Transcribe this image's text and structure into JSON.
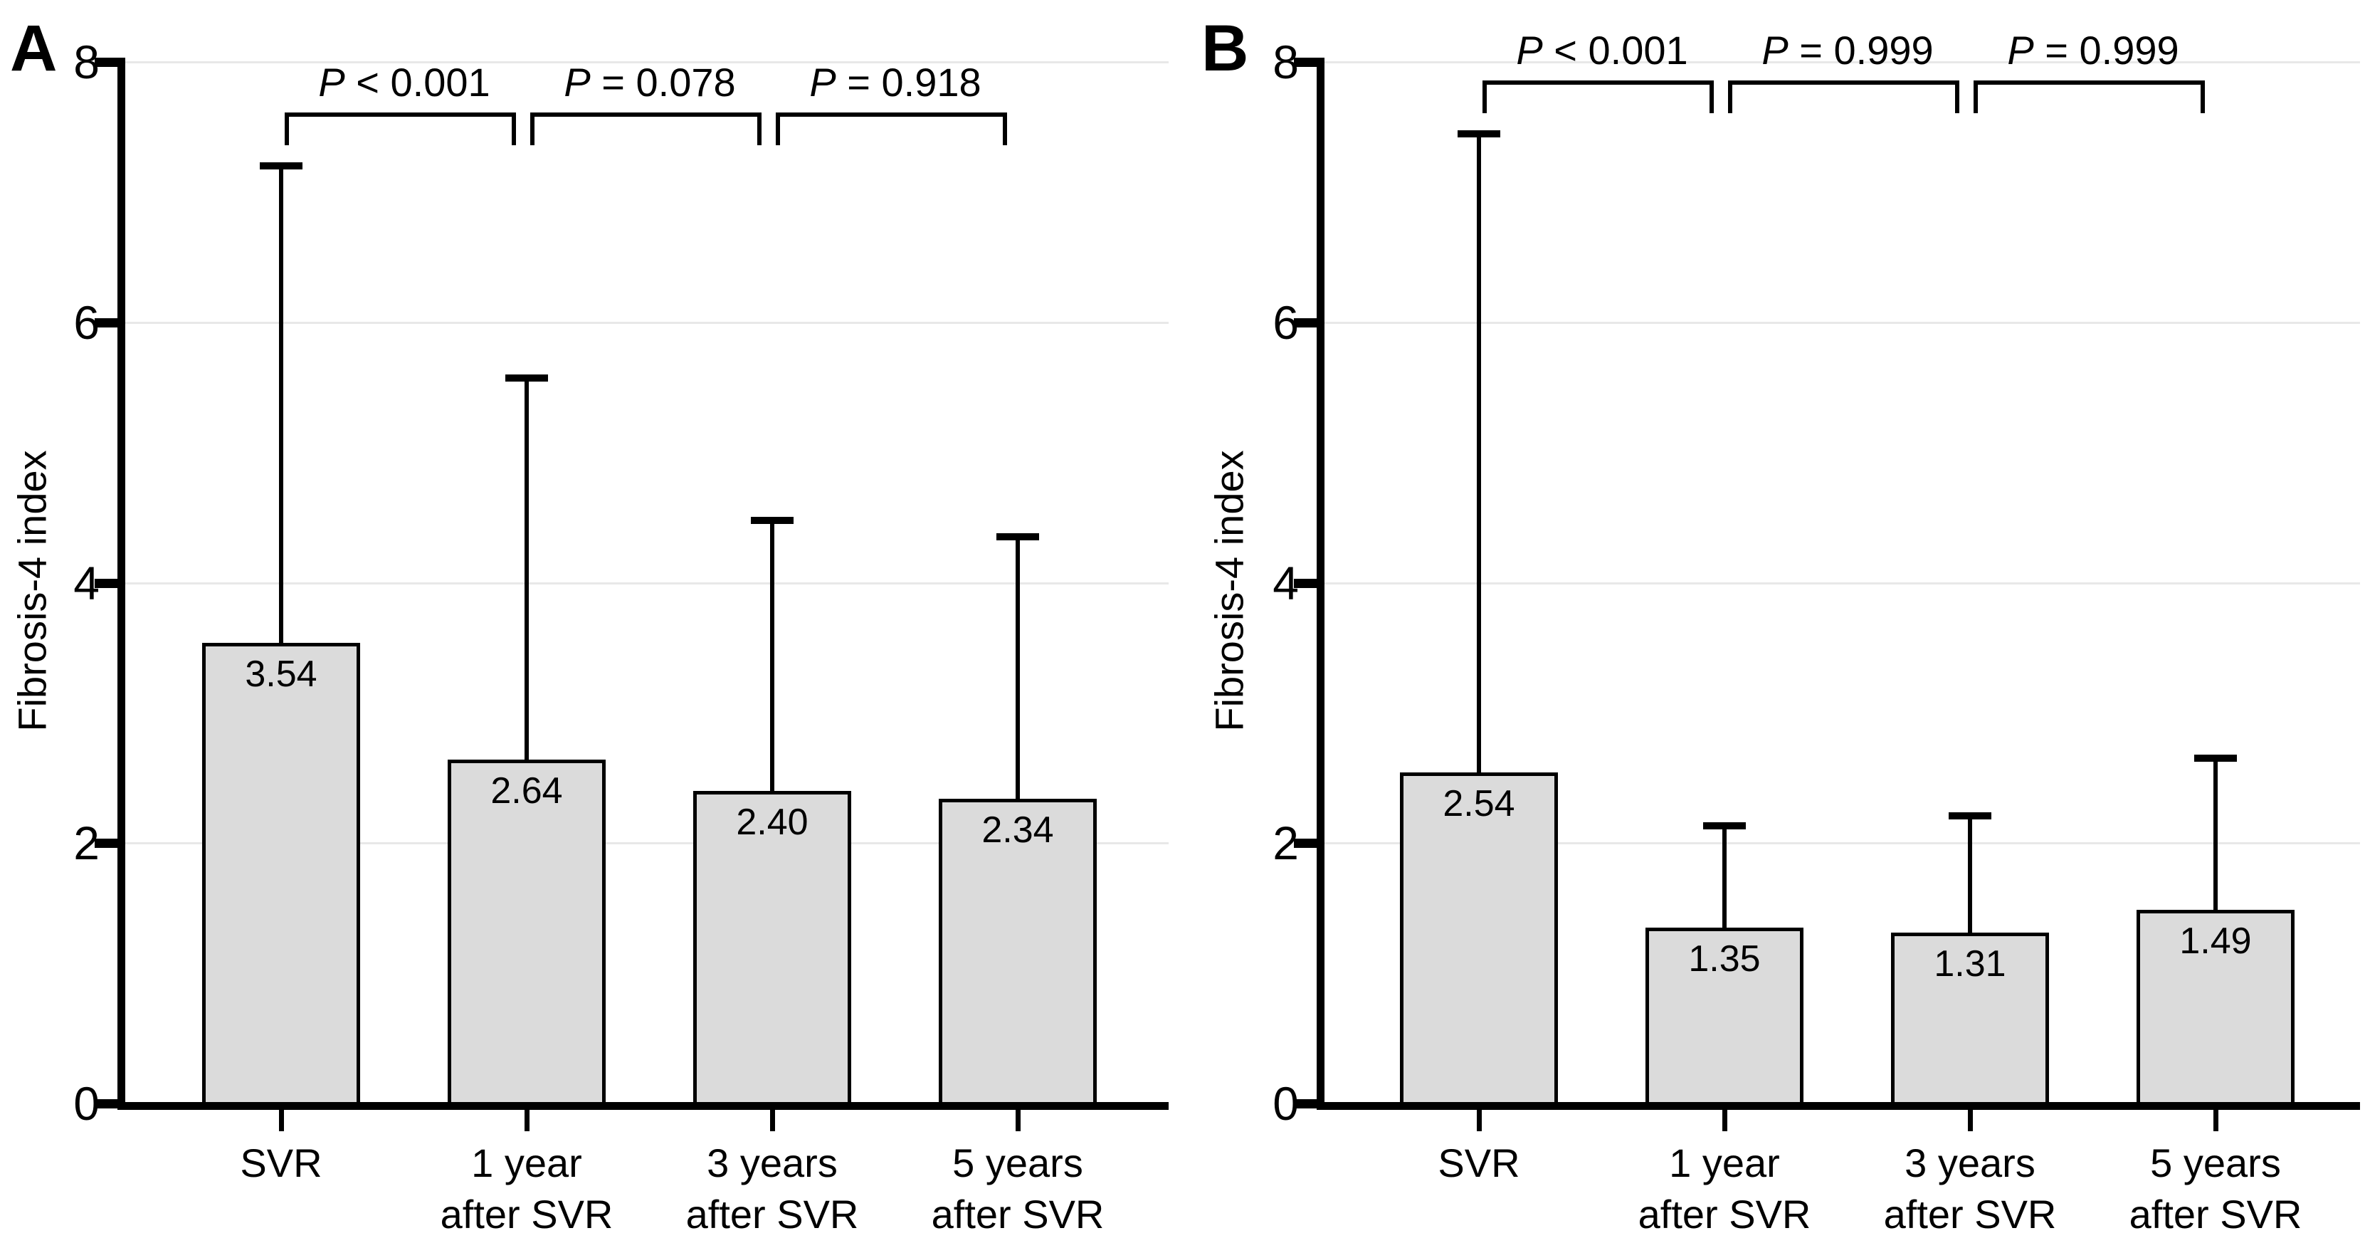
{
  "figure": {
    "panel_letters": [
      "A",
      "B"
    ],
    "colors": {
      "bar_fill": "#dbdbdb",
      "bar_border": "#000000",
      "gridline": "#e8e8e8",
      "axis": "#000000",
      "background": "#ffffff"
    }
  },
  "chart_data": [
    {
      "type": "bar",
      "panel_label": "A",
      "title": "",
      "xlabel": "",
      "ylabel": "Fibrosis-4 index",
      "ylim": [
        0,
        8
      ],
      "yticks": [
        0,
        2,
        4,
        6,
        8
      ],
      "grid": "horizontal",
      "legend": null,
      "categories": [
        "SVR",
        "1 year\nafter SVR",
        "3 years\nafter SVR",
        "5 years\nafter SVR"
      ],
      "values": [
        3.54,
        2.64,
        2.4,
        2.34
      ],
      "bar_value_labels": [
        "3.54",
        "2.64",
        "2.40",
        "2.34"
      ],
      "error_bar_tops": [
        7.2,
        5.57,
        4.48,
        4.35
      ],
      "p_annotations": [
        {
          "from": 0,
          "to": 1,
          "label": "P < 0.001"
        },
        {
          "from": 1,
          "to": 2,
          "label": "P = 0.078"
        },
        {
          "from": 2,
          "to": 3,
          "label": "P = 0.918"
        }
      ]
    },
    {
      "type": "bar",
      "panel_label": "B",
      "title": "",
      "xlabel": "",
      "ylabel": "Fibrosis-4 index",
      "ylim": [
        0,
        8
      ],
      "yticks": [
        0,
        2,
        4,
        6,
        8
      ],
      "grid": "horizontal",
      "legend": null,
      "categories": [
        "SVR",
        "1 year\nafter SVR",
        "3 years\nafter SVR",
        "5 years\nafter SVR"
      ],
      "values": [
        2.54,
        1.35,
        1.31,
        1.49
      ],
      "bar_value_labels": [
        "2.54",
        "1.35",
        "1.31",
        "1.49"
      ],
      "error_bar_tops": [
        7.45,
        2.13,
        2.21,
        2.65
      ],
      "p_annotations": [
        {
          "from": 0,
          "to": 1,
          "label": "P < 0.001"
        },
        {
          "from": 1,
          "to": 2,
          "label": "P = 0.999"
        },
        {
          "from": 2,
          "to": 3,
          "label": "P = 0.999"
        }
      ]
    }
  ]
}
